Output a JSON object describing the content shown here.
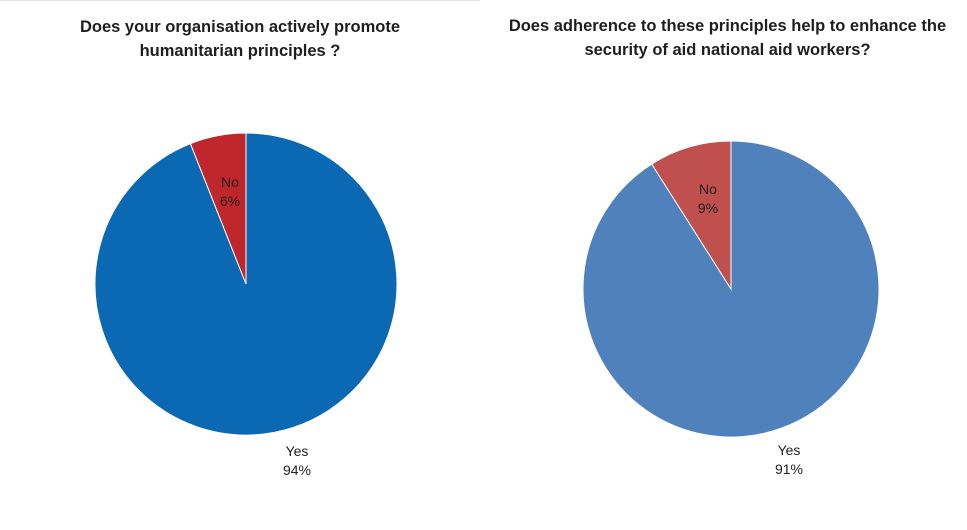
{
  "colors": {
    "left_yes": "#0b69b4",
    "left_no": "#c0272d",
    "right_yes": "#4f81bd",
    "right_no": "#c0504d"
  },
  "chart_data": [
    {
      "type": "pie",
      "title": "Does your organisation actively promote humanitarian principles ?",
      "categories": [
        "Yes",
        "No"
      ],
      "values": [
        94,
        6
      ],
      "labels": [
        {
          "name": "Yes",
          "percent": "94%"
        },
        {
          "name": "No",
          "percent": "6%"
        }
      ],
      "colors": [
        "#0b69b4",
        "#c0272d"
      ],
      "legend": "none"
    },
    {
      "type": "pie",
      "title": "Does adherence to these principles help to enhance the security of aid national aid workers?",
      "categories": [
        "Yes",
        "No"
      ],
      "values": [
        91,
        9
      ],
      "labels": [
        {
          "name": "Yes",
          "percent": "91%"
        },
        {
          "name": "No",
          "percent": "9%"
        }
      ],
      "colors": [
        "#4f81bd",
        "#c0504d"
      ],
      "legend": "none"
    }
  ]
}
